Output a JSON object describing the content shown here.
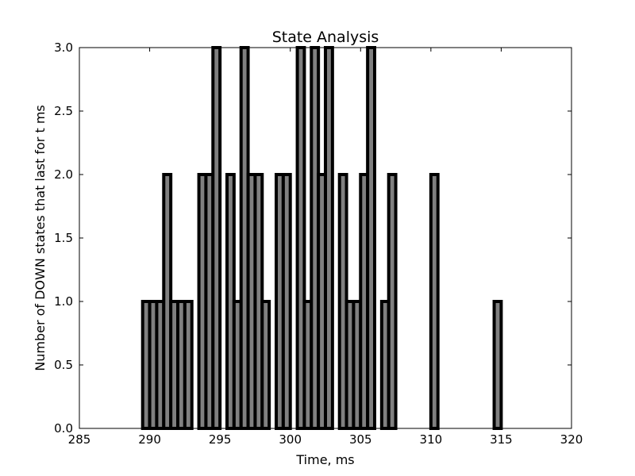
{
  "chart_data": {
    "type": "bar",
    "title": "State Analysis",
    "xlabel": "Time, ms",
    "ylabel": "Number of DOWN states that last for t ms",
    "xlim": [
      285,
      320
    ],
    "ylim": [
      0,
      3
    ],
    "xticks": [
      "285",
      "290",
      "295",
      "300",
      "305",
      "310",
      "315",
      "320"
    ],
    "yticks": [
      "0.0",
      "0.5",
      "1.0",
      "1.5",
      "2.0",
      "2.5",
      "3.0"
    ],
    "bar_width": 0.5,
    "bar_color": "#808080",
    "edge_color": "#000000",
    "grid": false,
    "x": [
      289.5,
      290.0,
      290.5,
      291.0,
      291.5,
      292.0,
      292.5,
      293.0,
      293.5,
      294.0,
      294.5,
      295.0,
      295.5,
      296.0,
      296.5,
      297.0,
      297.5,
      298.0,
      298.5,
      299.0,
      299.5,
      300.0,
      300.5,
      301.0,
      301.5,
      302.0,
      302.5,
      303.0,
      303.5,
      304.0,
      304.5,
      305.0,
      305.5,
      306.0,
      306.5,
      307.0,
      307.5,
      308.0,
      308.5,
      309.0,
      309.5,
      310.0,
      310.5,
      311.0,
      311.5,
      312.0,
      312.5,
      313.0,
      313.5,
      314.0,
      314.5
    ],
    "values": [
      1,
      1,
      1,
      2,
      1,
      1,
      1,
      0,
      2,
      2,
      3,
      0,
      2,
      1,
      3,
      2,
      2,
      1,
      0,
      2,
      2,
      0,
      3,
      1,
      3,
      2,
      3,
      0,
      2,
      1,
      1,
      2,
      3,
      0,
      1,
      2,
      0,
      0,
      0,
      0,
      0,
      2,
      0,
      0,
      0,
      0,
      0,
      0,
      0,
      0,
      1
    ]
  }
}
